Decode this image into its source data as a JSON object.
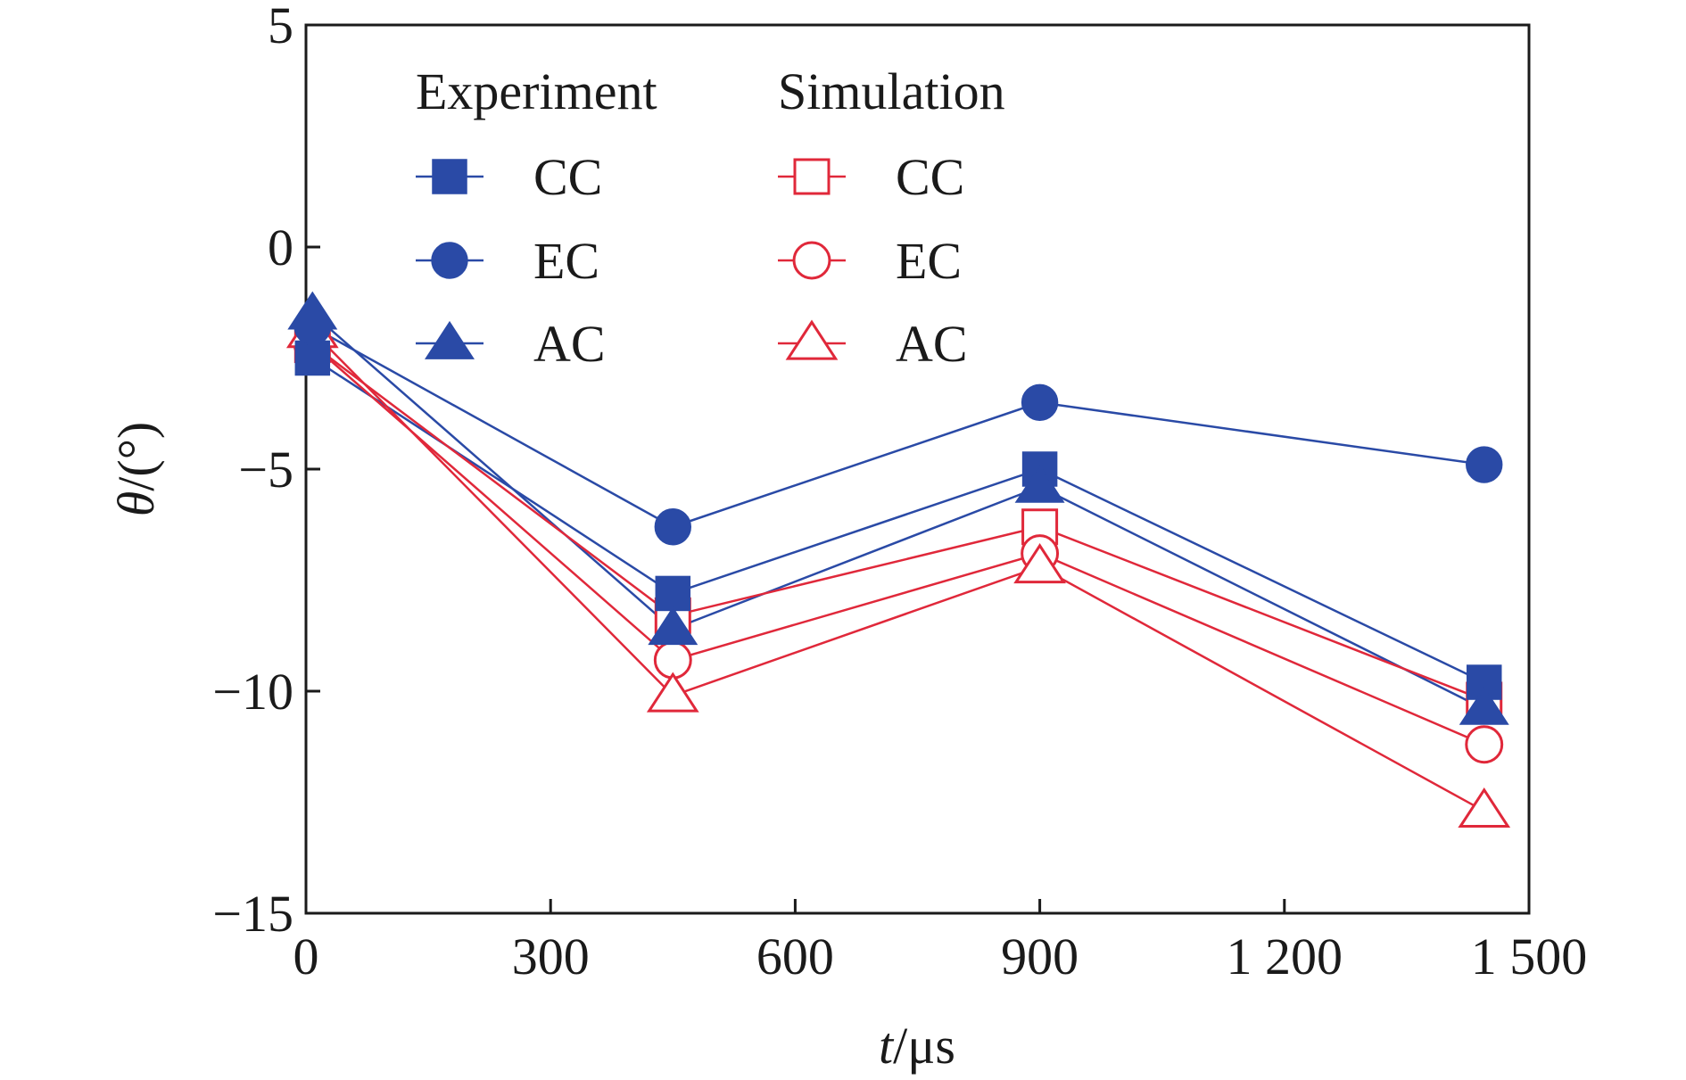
{
  "chart_data": {
    "type": "line",
    "title": "",
    "xlabel": {
      "var": "t",
      "unit": "/μs"
    },
    "ylabel": {
      "var": "θ",
      "unit": "/(°)"
    },
    "xlim": [
      0,
      1500
    ],
    "ylim": [
      -15,
      5
    ],
    "x_ticks": [
      0,
      300,
      600,
      900,
      1200,
      1500
    ],
    "x_tick_labels": [
      "0",
      "300",
      "600",
      "900",
      "1 200",
      "1 500"
    ],
    "y_ticks": [
      5,
      0,
      -5,
      -10,
      -15
    ],
    "y_tick_labels": [
      "5",
      "0",
      "−5",
      "−10",
      "−15"
    ],
    "grid": false,
    "legend": {
      "placement": "top-left",
      "groups": [
        {
          "title": "Experiment",
          "color": "#2a4aa6",
          "filled": true
        },
        {
          "title": "Simulation",
          "color": "#e0283a",
          "filled": false
        }
      ]
    },
    "x": [
      8,
      450,
      900,
      1445
    ],
    "series": [
      {
        "name": "CC",
        "group": "Experiment",
        "marker": "square",
        "color": "#2a4aa6",
        "filled": true,
        "values": [
          -2.5,
          -7.8,
          -5.0,
          -9.8
        ]
      },
      {
        "name": "EC",
        "group": "Experiment",
        "marker": "circle",
        "color": "#2a4aa6",
        "filled": true,
        "values": [
          -1.8,
          -6.3,
          -3.5,
          -4.9
        ]
      },
      {
        "name": "AC",
        "group": "Experiment",
        "marker": "triangle",
        "color": "#2a4aa6",
        "filled": true,
        "values": [
          -1.5,
          -8.6,
          -5.4,
          -10.4
        ]
      },
      {
        "name": "CC",
        "group": "Simulation",
        "marker": "square",
        "color": "#e0283a",
        "filled": false,
        "values": [
          -2.2,
          -8.3,
          -6.3,
          -10.2
        ]
      },
      {
        "name": "EC",
        "group": "Simulation",
        "marker": "circle",
        "color": "#e0283a",
        "filled": false,
        "values": [
          -2.2,
          -9.3,
          -6.9,
          -11.2
        ]
      },
      {
        "name": "AC",
        "group": "Simulation",
        "marker": "triangle",
        "color": "#e0283a",
        "filled": false,
        "values": [
          -1.9,
          -10.1,
          -7.2,
          -12.7
        ]
      }
    ]
  }
}
